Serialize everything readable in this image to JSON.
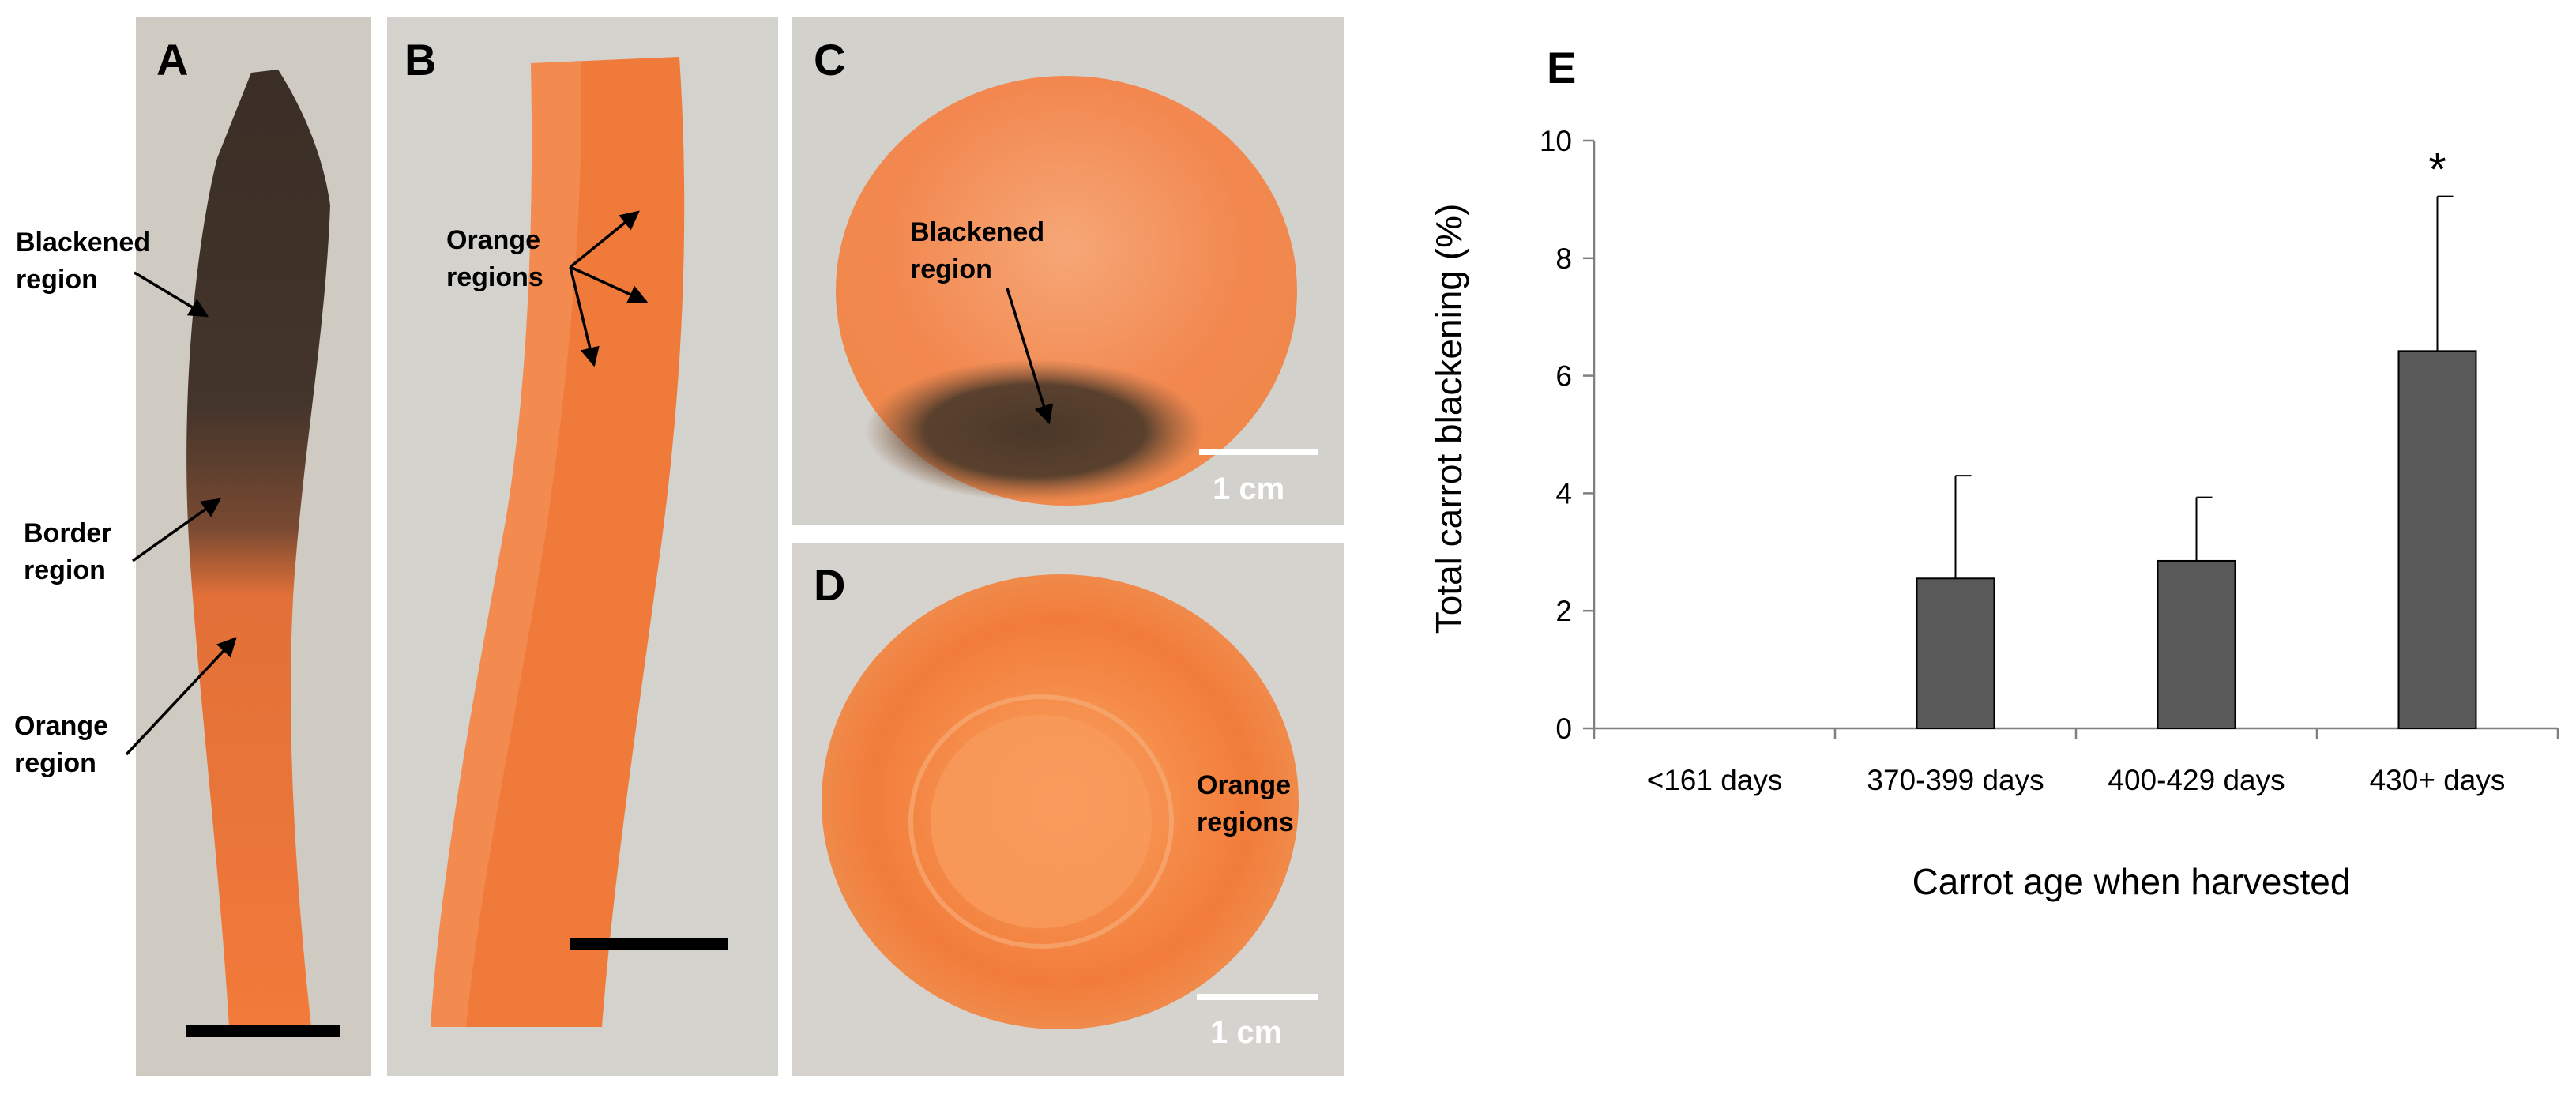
{
  "figure": {
    "panels": {
      "A": {
        "letter": "A",
        "labels": [
          {
            "line1": "Blackened",
            "line2": "region"
          },
          {
            "line1": "Border",
            "line2": "region"
          },
          {
            "line1": "Orange",
            "line2": "region"
          }
        ]
      },
      "B": {
        "letter": "B",
        "label": {
          "line1": "Orange",
          "line2": "regions"
        }
      },
      "C": {
        "letter": "C",
        "label": {
          "line1": "Blackened",
          "line2": "region"
        },
        "scale_text": "1 cm"
      },
      "D": {
        "letter": "D",
        "label": {
          "line1": "Orange",
          "line2": "regions"
        },
        "scale_text": "1 cm"
      },
      "E": {
        "letter": "E"
      }
    },
    "colors": {
      "photo_background": "#cfcac0",
      "carrot_orange": "#f07a3a",
      "carrot_light": "#f4955a",
      "blackened": "#4a3a2c",
      "bar_fill": "#595959"
    }
  },
  "chart_data": {
    "type": "bar",
    "categories": [
      "<161 days",
      "370-399 days",
      "400-429 days",
      "430+ days"
    ],
    "values": [
      0,
      2.55,
      2.85,
      6.42
    ],
    "error_upper": [
      0,
      4.3,
      3.93,
      9.05
    ],
    "significance": [
      "",
      "",
      "",
      "*"
    ],
    "xlabel": "Carrot age when harvested",
    "ylabel": "Total carrot blackening (%)",
    "ylim": [
      0,
      10
    ],
    "yticks": [
      0,
      2,
      4,
      6,
      8,
      10
    ],
    "grid": false,
    "legend": "none"
  }
}
